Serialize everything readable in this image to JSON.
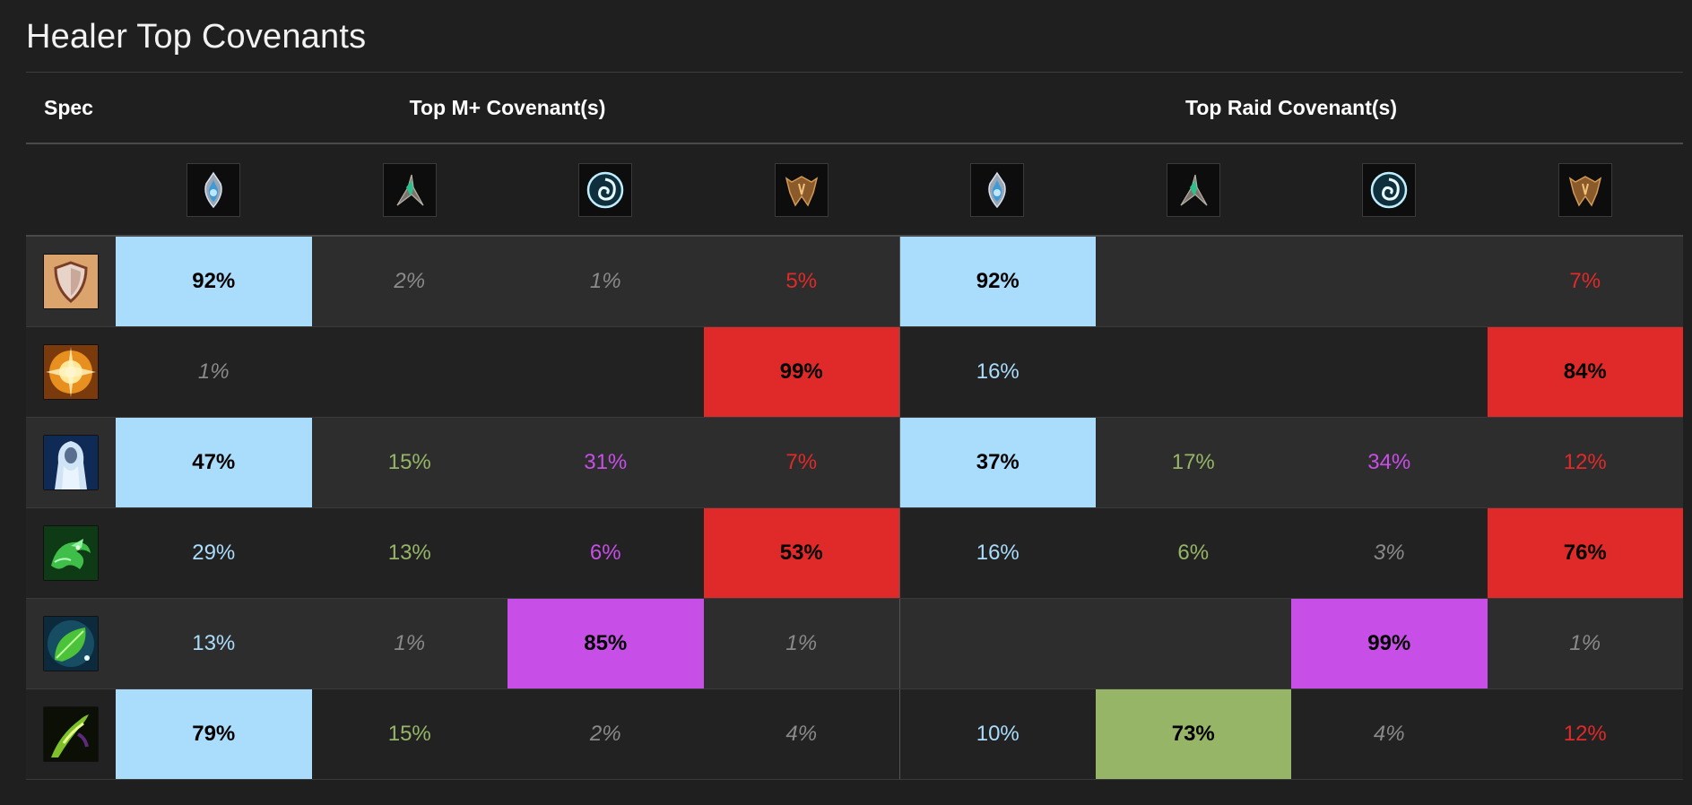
{
  "page": {
    "title": "Healer Top Covenants"
  },
  "table": {
    "headers": {
      "spec": "Spec",
      "mplus": "Top M+ Covenant(s)",
      "raid": "Top Raid Covenant(s)"
    },
    "covenants": [
      {
        "name": "kyrian-icon",
        "color": "#aadcfb"
      },
      {
        "name": "necrolord-icon",
        "color": "#96b567"
      },
      {
        "name": "night-fae-icon",
        "color": "#c84ee8"
      },
      {
        "name": "venthyr-icon",
        "color": "#e02a2a"
      }
    ],
    "colors": {
      "kyrian": "#aadcfb",
      "necrolord": "#96b567",
      "night_fae": "#c84ee8",
      "venthyr": "#e02a2a",
      "minor": "#8a8a8a"
    },
    "rows": [
      {
        "spec_icon": "holy-paladin-icon",
        "mplus": [
          {
            "text": "92%",
            "style": "strong",
            "cov": "kyrian"
          },
          {
            "text": "2%",
            "style": "dim"
          },
          {
            "text": "1%",
            "style": "dim"
          },
          {
            "text": "5%",
            "style": "color",
            "cov": "venthyr"
          }
        ],
        "raid": [
          {
            "text": "92%",
            "style": "strong",
            "cov": "kyrian"
          },
          {
            "text": "",
            "style": "empty"
          },
          {
            "text": "",
            "style": "empty"
          },
          {
            "text": "7%",
            "style": "color",
            "cov": "venthyr"
          }
        ]
      },
      {
        "spec_icon": "holy-priest-icon",
        "mplus": [
          {
            "text": "1%",
            "style": "dim"
          },
          {
            "text": "",
            "style": "empty"
          },
          {
            "text": "",
            "style": "empty"
          },
          {
            "text": "99%",
            "style": "strong",
            "cov": "venthyr"
          }
        ],
        "raid": [
          {
            "text": "16%",
            "style": "color",
            "cov": "kyrian"
          },
          {
            "text": "",
            "style": "empty"
          },
          {
            "text": "",
            "style": "empty"
          },
          {
            "text": "84%",
            "style": "strong",
            "cov": "venthyr"
          }
        ]
      },
      {
        "spec_icon": "discipline-priest-icon",
        "mplus": [
          {
            "text": "47%",
            "style": "strong",
            "cov": "kyrian"
          },
          {
            "text": "15%",
            "style": "color",
            "cov": "necrolord"
          },
          {
            "text": "31%",
            "style": "color",
            "cov": "night_fae"
          },
          {
            "text": "7%",
            "style": "color",
            "cov": "venthyr"
          }
        ],
        "raid": [
          {
            "text": "37%",
            "style": "strong",
            "cov": "kyrian"
          },
          {
            "text": "17%",
            "style": "color",
            "cov": "necrolord"
          },
          {
            "text": "34%",
            "style": "color",
            "cov": "night_fae"
          },
          {
            "text": "12%",
            "style": "color",
            "cov": "venthyr"
          }
        ]
      },
      {
        "spec_icon": "mistweaver-monk-icon",
        "mplus": [
          {
            "text": "29%",
            "style": "color",
            "cov": "kyrian"
          },
          {
            "text": "13%",
            "style": "color",
            "cov": "necrolord"
          },
          {
            "text": "6%",
            "style": "color",
            "cov": "night_fae"
          },
          {
            "text": "53%",
            "style": "strong",
            "cov": "venthyr"
          }
        ],
        "raid": [
          {
            "text": "16%",
            "style": "color",
            "cov": "kyrian"
          },
          {
            "text": "6%",
            "style": "color",
            "cov": "necrolord"
          },
          {
            "text": "3%",
            "style": "dim"
          },
          {
            "text": "76%",
            "style": "strong",
            "cov": "venthyr"
          }
        ]
      },
      {
        "spec_icon": "restoration-druid-icon",
        "mplus": [
          {
            "text": "13%",
            "style": "color",
            "cov": "kyrian"
          },
          {
            "text": "1%",
            "style": "dim"
          },
          {
            "text": "85%",
            "style": "strong",
            "cov": "night_fae"
          },
          {
            "text": "1%",
            "style": "dim"
          }
        ],
        "raid": [
          {
            "text": "",
            "style": "empty"
          },
          {
            "text": "",
            "style": "empty"
          },
          {
            "text": "99%",
            "style": "strong",
            "cov": "night_fae"
          },
          {
            "text": "1%",
            "style": "dim"
          }
        ]
      },
      {
        "spec_icon": "restoration-shaman-icon",
        "mplus": [
          {
            "text": "79%",
            "style": "strong",
            "cov": "kyrian"
          },
          {
            "text": "15%",
            "style": "color",
            "cov": "necrolord"
          },
          {
            "text": "2%",
            "style": "dim"
          },
          {
            "text": "4%",
            "style": "dim"
          }
        ],
        "raid": [
          {
            "text": "10%",
            "style": "color",
            "cov": "kyrian"
          },
          {
            "text": "73%",
            "style": "strong",
            "cov": "necrolord"
          },
          {
            "text": "4%",
            "style": "dim"
          },
          {
            "text": "12%",
            "style": "color",
            "cov": "venthyr"
          }
        ]
      }
    ]
  }
}
